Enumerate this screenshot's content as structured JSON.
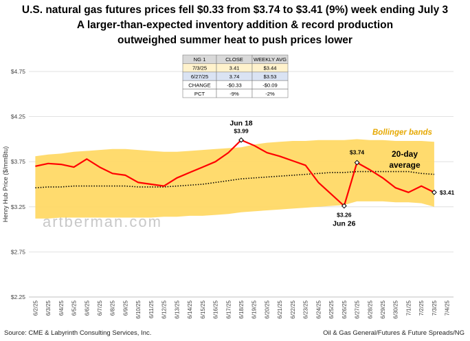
{
  "titles": [
    "U.S. natural gas futures prices fell $0.33 from $3.74 to $3.41 (9%) week ending July 3",
    "A larger-than-expected inventory addition & record production",
    "outweighed summer heat to push prices lower"
  ],
  "footer": {
    "left": "Source: CME & Labyrinth Consulting Services, Inc.",
    "right": "Oil & Gas General/Futures & Future Spreads/NG"
  },
  "watermark": "artberman.com",
  "table": {
    "headers": [
      "NG 1",
      "CLOSE",
      "WEEKLY AVG"
    ],
    "rows": [
      {
        "label": "7/3/25",
        "close": "3.41",
        "avg": "$3.44"
      },
      {
        "label": "6/27/25",
        "close": "3.74",
        "avg": "$3.53"
      },
      {
        "label": "CHANGE",
        "close": "-$0.33",
        "avg": "-$0.09"
      },
      {
        "label": "PCT",
        "close": "-9%",
        "avg": "-2%"
      }
    ],
    "colors": {
      "header": "#d9d9d9",
      "row1": "#fff2cc",
      "row2": "#dae3f3",
      "row3": "#ffffff",
      "row4": "#ffffff"
    }
  },
  "colors": {
    "band": "#ffd966",
    "price": "#ff0000",
    "avg": "#000000"
  },
  "chart_data": {
    "type": "line",
    "ylabel": "Henry Hub Price ($/mmBtu)",
    "ylim": [
      2.25,
      4.75
    ],
    "yticks": [
      2.25,
      2.75,
      3.25,
      3.75,
      4.25,
      4.75
    ],
    "ytick_labels": [
      "$2.25",
      "$2.75",
      "$3.25",
      "$3.75",
      "$4.25",
      "$4.75"
    ],
    "x": [
      "6/2/25",
      "6/3/25",
      "6/4/25",
      "6/5/25",
      "6/6/25",
      "6/7/25",
      "6/8/25",
      "6/9/25",
      "6/10/25",
      "6/11/25",
      "6/12/25",
      "6/13/25",
      "6/14/25",
      "6/15/25",
      "6/16/25",
      "6/17/25",
      "6/18/25",
      "6/19/25",
      "6/20/25",
      "6/21/25",
      "6/22/25",
      "6/23/25",
      "6/24/25",
      "6/25/25",
      "6/26/25",
      "6/27/25",
      "6/28/25",
      "6/29/25",
      "6/30/25",
      "7/1/25",
      "7/2/25",
      "7/3/25",
      "7/4/25"
    ],
    "series": [
      {
        "name": "Price",
        "values": [
          3.7,
          3.73,
          3.72,
          3.69,
          3.78,
          3.69,
          3.62,
          3.6,
          3.52,
          3.5,
          3.48,
          3.57,
          3.63,
          3.69,
          3.75,
          3.85,
          3.99,
          3.93,
          3.85,
          3.81,
          3.76,
          3.71,
          3.52,
          3.39,
          3.26,
          3.74,
          3.66,
          3.57,
          3.46,
          3.41,
          3.48,
          3.41,
          null
        ]
      },
      {
        "name": "20-day average",
        "values": [
          3.46,
          3.47,
          3.47,
          3.48,
          3.48,
          3.48,
          3.48,
          3.48,
          3.47,
          3.47,
          3.47,
          3.48,
          3.49,
          3.5,
          3.52,
          3.54,
          3.56,
          3.57,
          3.58,
          3.59,
          3.6,
          3.61,
          3.62,
          3.63,
          3.63,
          3.64,
          3.64,
          3.64,
          3.64,
          3.64,
          3.62,
          3.61,
          null
        ]
      },
      {
        "name": "Upper band",
        "values": [
          3.81,
          3.83,
          3.84,
          3.86,
          3.87,
          3.88,
          3.89,
          3.89,
          3.88,
          3.87,
          3.86,
          3.86,
          3.87,
          3.88,
          3.89,
          3.9,
          3.91,
          3.94,
          3.96,
          3.97,
          3.98,
          3.98,
          3.99,
          3.99,
          3.99,
          4.0,
          3.99,
          3.99,
          3.98,
          3.98,
          3.98,
          3.97,
          null
        ]
      },
      {
        "name": "Lower band",
        "values": [
          3.12,
          3.12,
          3.13,
          3.13,
          3.13,
          3.13,
          3.13,
          3.13,
          3.13,
          3.13,
          3.14,
          3.14,
          3.15,
          3.15,
          3.16,
          3.17,
          3.19,
          3.2,
          3.21,
          3.22,
          3.23,
          3.24,
          3.25,
          3.26,
          3.27,
          3.31,
          3.31,
          3.31,
          3.3,
          3.3,
          3.29,
          3.25,
          null
        ]
      }
    ],
    "annotations": {
      "peak": {
        "date": "Jun 18",
        "value": "$3.99",
        "index": 16
      },
      "trough": {
        "date": "Jun 26",
        "value": "$3.26",
        "index": 24
      },
      "rebound": {
        "value": "$3.74",
        "index": 25
      },
      "last": {
        "value": "$3.41",
        "index": 31
      },
      "bands_label": "Bollinger bands",
      "avg_label_1": "20-day",
      "avg_label_2": "average"
    }
  }
}
